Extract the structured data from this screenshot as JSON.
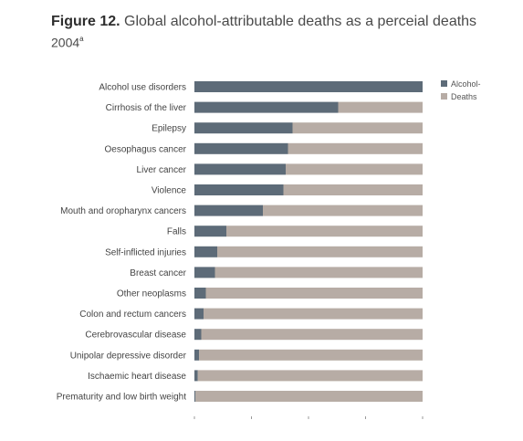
{
  "figure": {
    "label": "Figure 12.",
    "title": "Global alcohol-attributable deaths as a perceial deaths",
    "year": "2004",
    "footnote_mark": "a"
  },
  "chart_data": {
    "type": "bar",
    "orientation": "horizontal",
    "stacked": true,
    "title": "Figure 12. Global alcohol-attributable deaths as a perceial deaths 2004",
    "categories": [
      "Alcohol use disorders",
      "Cirrhosis of the liver",
      "Epilepsy",
      "Oesophagus cancer",
      "Liver cancer",
      "Violence",
      "Mouth and oropharynx cancers",
      "Falls",
      "Self-inflicted injuries",
      "Breast cancer",
      "Other neoplasms",
      "Colon and rectum cancers",
      "Cerebrovascular disease",
      "Unipolar depressive disorder",
      "Ischaemic heart disease",
      "Prematurity and low birth weight"
    ],
    "series": [
      {
        "name": "Alcohol-",
        "color": "#5d6b78",
        "values": [
          100,
          63,
          43,
          41,
          40,
          39,
          30,
          14,
          10,
          9,
          5,
          4,
          3,
          2,
          1.5,
          0.5
        ]
      },
      {
        "name": "Deaths",
        "color": "#b7aca5",
        "values": [
          0,
          37,
          57,
          59,
          60,
          61,
          70,
          86,
          90,
          91,
          95,
          96,
          97,
          98,
          98.5,
          99.5
        ]
      }
    ],
    "xlim": [
      0,
      100
    ],
    "legend_position": "top-right",
    "grid": false
  },
  "colors": {
    "alcohol": "#5d6b78",
    "deaths": "#b7aca5",
    "axis_ticks": "#999999"
  }
}
